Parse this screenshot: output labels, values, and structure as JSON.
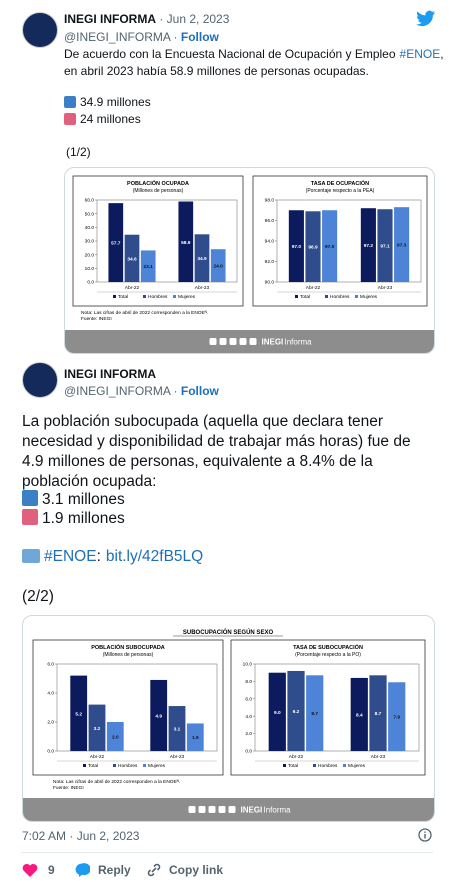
{
  "tweets": [
    {
      "name": "INEGI INFORMA",
      "date": "Jun 2, 2023",
      "handle": "@INEGI_INFORMA",
      "follow": "Follow",
      "text_a": "De acuerdo con la Encuesta Nacional de Ocupación y Empleo",
      "hashtag": "#ENOE",
      "text_b": ",",
      "text_c": "en abril 2023 había 58.9 millones de personas ocupadas.",
      "men": "34.9 millones",
      "women": "24 millones",
      "counter": "(1/2)",
      "image": {
        "charts": [
          {
            "type": "bar",
            "title": "POBLACIÓN OCUPADA",
            "subtitle": "(Millones de personas)",
            "categories": [
              "Abr-22",
              "Abr-23"
            ],
            "series": [
              {
                "name": "Total",
                "color": "#0c1b5e",
                "values": [
                  57.7,
                  58.9
                ],
                "value_labels": [
                  "57.7",
                  "58.9"
                ]
              },
              {
                "name": "Hombres",
                "color": "#2f4d8c",
                "values": [
                  34.6,
                  34.9
                ],
                "value_labels": [
                  "34.6",
                  "34.9"
                ]
              },
              {
                "name": "Mujeres",
                "color": "#4d84d8",
                "values": [
                  23.1,
                  24.0
                ],
                "value_labels": [
                  "23.1",
                  "24.0"
                ]
              }
            ],
            "ylim": [
              0,
              60
            ],
            "yticks": [
              {
                "value": 0,
                "label": "0.0"
              },
              {
                "value": 10,
                "label": "10.0"
              },
              {
                "value": 20,
                "label": "20.0"
              },
              {
                "value": 30,
                "label": "30.0"
              },
              {
                "value": 40,
                "label": "40.0"
              },
              {
                "value": 50,
                "label": "50.0"
              },
              {
                "value": 60,
                "label": "60.0"
              }
            ]
          },
          {
            "type": "bar",
            "title": "TASA DE OCUPACIÓN",
            "subtitle": "(Porcentaje respecto a la PEA)",
            "categories": [
              "Abr-22",
              "Abr-23"
            ],
            "series": [
              {
                "name": "Total",
                "color": "#0c1b5e",
                "values": [
                  97.0,
                  97.2
                ],
                "value_labels": [
                  "97.0",
                  "97.2"
                ]
              },
              {
                "name": "Hombres",
                "color": "#2f4d8c",
                "values": [
                  96.9,
                  97.1
                ],
                "value_labels": [
                  "96.9",
                  "97.1"
                ]
              },
              {
                "name": "Mujeres",
                "color": "#4d84d8",
                "values": [
                  97.0,
                  97.3
                ],
                "value_labels": [
                  "97.0",
                  "97.3"
                ]
              }
            ],
            "ylim": [
              90,
              98
            ],
            "yticks": [
              {
                "value": 90,
                "label": "90.0"
              },
              {
                "value": 92,
                "label": "92.0"
              },
              {
                "value": 94,
                "label": "94.0"
              },
              {
                "value": 96,
                "label": "96.0"
              },
              {
                "value": 98,
                "label": "98.0"
              }
            ]
          }
        ],
        "note": "Nota: Las cifras de abril de 2022 corresponden a la ENOEᴺ.",
        "source": "Fuente: INEGI",
        "brand": "INEGI",
        "brand_rest": "Informa"
      }
    },
    {
      "name": "INEGI INFORMA",
      "handle": "@INEGI_INFORMA",
      "follow": "Follow",
      "lines": [
        "La población subocupada (aquella que declara tener",
        "necesidad y disponibilidad de trabajar más horas) fue de",
        "4.9 millones de personas, equivalente a 8.4% de la",
        "población ocupada:"
      ],
      "men": "3.1 millones",
      "women": "1.9 millones",
      "hashtag": "#ENOE",
      "sep": ":",
      "link": "bit.ly/42fB5LQ",
      "counter": "(2/2)",
      "image": {
        "header": "SUBOCUPACIÓN SEGÚN SEXO",
        "charts": [
          {
            "type": "bar",
            "title": "POBLACIÓN SUBOCUPADA",
            "subtitle": "(Millones de personas)",
            "categories": [
              "Abr-22",
              "Abr-23"
            ],
            "series": [
              {
                "name": "Total",
                "color": "#0c1b5e",
                "values": [
                  5.2,
                  4.9
                ],
                "value_labels": [
                  "5.2",
                  "4.9"
                ]
              },
              {
                "name": "Hombres",
                "color": "#2f4d8c",
                "values": [
                  3.2,
                  3.1
                ],
                "value_labels": [
                  "3.2",
                  "3.1"
                ]
              },
              {
                "name": "Mujeres",
                "color": "#4d84d8",
                "values": [
                  2.0,
                  1.9
                ],
                "value_labels": [
                  "2.0",
                  "1.9"
                ]
              }
            ],
            "ylim": [
              0,
              6
            ],
            "yticks": [
              {
                "value": 0,
                "label": "0.0"
              },
              {
                "value": 2,
                "label": "2.0"
              },
              {
                "value": 4,
                "label": "4.0"
              },
              {
                "value": 6,
                "label": "6.0"
              }
            ]
          },
          {
            "type": "bar",
            "title": "TASA DE SUBOCUPACIÓN",
            "subtitle": "(Porcentaje respecto a la PO)",
            "categories": [
              "Abr-22",
              "Abr-23"
            ],
            "series": [
              {
                "name": "Total",
                "color": "#0c1b5e",
                "values": [
                  9.0,
                  8.4
                ],
                "value_labels": [
                  "9.0",
                  "8.4"
                ]
              },
              {
                "name": "Hombres",
                "color": "#2f4d8c",
                "values": [
                  9.2,
                  8.7
                ],
                "value_labels": [
                  "9.2",
                  "8.7"
                ]
              },
              {
                "name": "Mujeres",
                "color": "#4d84d8",
                "values": [
                  8.7,
                  7.9
                ],
                "value_labels": [
                  "8.7",
                  "7.9"
                ]
              }
            ],
            "ylim": [
              0,
              10
            ],
            "yticks": [
              {
                "value": 0,
                "label": "0.0"
              },
              {
                "value": 2,
                "label": "2.0"
              },
              {
                "value": 4,
                "label": "4.0"
              },
              {
                "value": 6,
                "label": "6.0"
              },
              {
                "value": 8,
                "label": "8.0"
              },
              {
                "value": 10,
                "label": "10.0"
              }
            ]
          }
        ],
        "note": "Nota: Las cifras de abril de 2022 corresponden a la ENOEᴺ.",
        "source": "Fuente: INEGI",
        "brand": "INEGI",
        "brand_rest": "Informa"
      }
    }
  ],
  "time": "7:02 AM · Jun 2, 2023",
  "likes": "9",
  "reply": "Reply",
  "copy": "Copy link"
}
